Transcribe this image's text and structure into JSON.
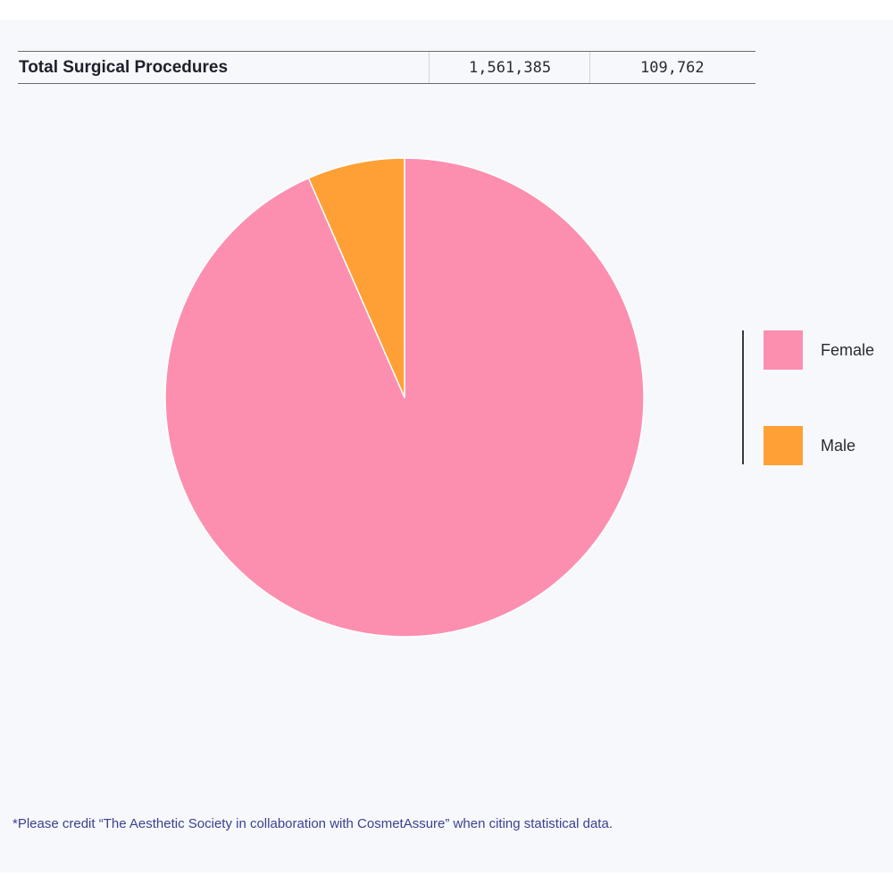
{
  "table": {
    "row_label": "Total Surgical Procedures",
    "female_value": "1,561,385",
    "male_value": "109,762"
  },
  "chart_data": {
    "type": "pie",
    "categories": [
      "Female",
      "Male"
    ],
    "values": [
      1561385,
      109762
    ],
    "colors": [
      "#fc8fb0",
      "#ffa036"
    ],
    "start_angle_deg": 0,
    "direction": "clockwise",
    "slice_border_color": "#ffffff",
    "legend": {
      "placement": "right",
      "entries": [
        "Female",
        "Male"
      ]
    }
  },
  "footnote": "*Please credit “The Aesthetic Society in collaboration with CosmetAssure” when citing statistical data."
}
